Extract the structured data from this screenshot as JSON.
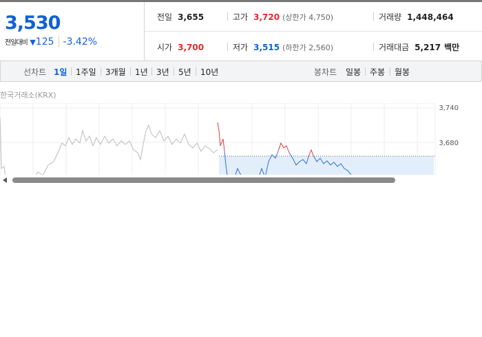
{
  "price": "3,530",
  "change_label": "전일대비",
  "change": "125",
  "change_rate": "-3.42%",
  "stats": [
    {
      "label": "전일",
      "value": "3,655"
    },
    {
      "label": "고가",
      "value": "3,720",
      "note": "(상한가 4,750)"
    },
    {
      "label": "거래량",
      "value": "1,448,464"
    },
    {
      "label": "시가",
      "value": "3,700"
    },
    {
      "label": "저가",
      "value": "3,515",
      "note": "(하한가 2,560)"
    },
    {
      "label": "거래대금",
      "value": "5,217",
      "unit": "백만"
    }
  ],
  "tabs": {
    "line_label": "선차트",
    "line": [
      "1일",
      "1주일",
      "3개월",
      "1년",
      "3년",
      "5년",
      "10년"
    ],
    "candle_label": "봉차트",
    "candle": [
      "일봉",
      "주봉",
      "월봉"
    ]
  },
  "source": "한국거래소(KRX)",
  "y_labels": [
    "3,740",
    "3,680"
  ]
}
